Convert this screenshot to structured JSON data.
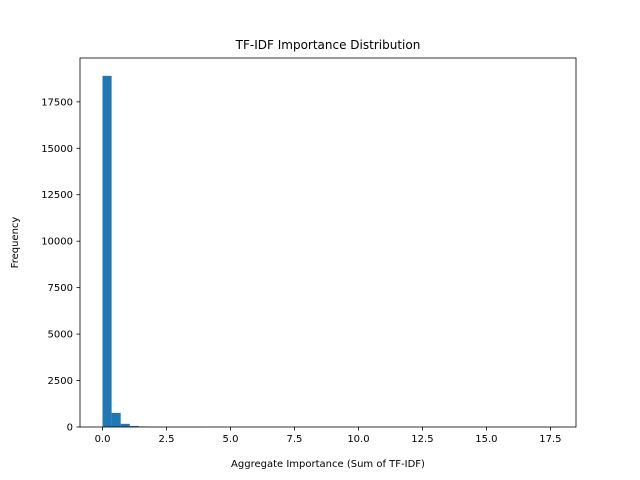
{
  "chart_data": {
    "type": "bar",
    "title": "TF-IDF Importance Distribution",
    "xlabel": "Aggregate Importance (Sum of TF-IDF)",
    "ylabel": "Frequency",
    "xlim": [
      -0.88,
      18.5
    ],
    "ylim": [
      0,
      19860
    ],
    "xticks": [
      0.0,
      2.5,
      5.0,
      7.5,
      10.0,
      12.5,
      15.0,
      17.5
    ],
    "xtick_labels": [
      "0.0",
      "2.5",
      "5.0",
      "7.5",
      "10.0",
      "12.5",
      "15.0",
      "17.5"
    ],
    "yticks": [
      0,
      2500,
      5000,
      7500,
      10000,
      12500,
      15000,
      17500
    ],
    "ytick_labels": [
      "0",
      "2500",
      "5000",
      "7500",
      "10000",
      "12500",
      "15000",
      "17500"
    ],
    "bins": {
      "start": 0.0,
      "width": 0.355,
      "counts": [
        18900,
        760,
        170,
        55,
        25,
        8,
        4,
        2,
        1,
        1,
        1,
        0,
        0,
        0,
        0,
        0,
        0,
        0,
        0,
        0,
        0,
        0,
        0,
        0,
        0,
        0,
        0,
        0,
        0,
        0,
        0,
        0,
        0,
        0,
        0,
        0,
        0,
        0,
        0,
        0,
        0,
        0,
        0,
        0,
        0,
        0,
        0,
        0,
        0,
        1
      ]
    },
    "bar_color": "#1f77b4",
    "grid": false,
    "legend": "none"
  }
}
